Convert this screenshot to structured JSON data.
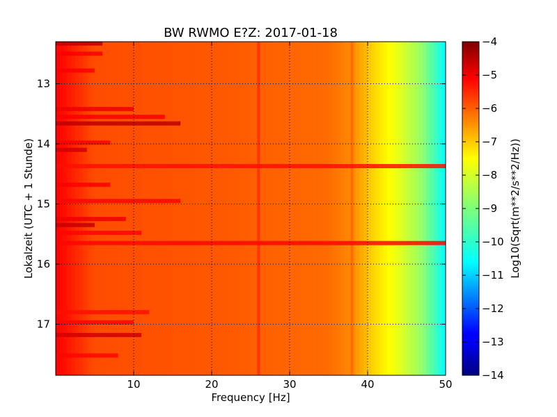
{
  "chart_data": {
    "type": "heatmap",
    "title": "BW RWMO E?Z: 2017-01-18",
    "xlabel": "Frequency [Hz]",
    "ylabel": "Lokalzeit (UTC + 1 Stunde)",
    "xlim": [
      0,
      50
    ],
    "ylim": [
      12.3,
      17.85
    ],
    "y_inverted": true,
    "xticks": [
      10,
      20,
      30,
      40,
      50
    ],
    "yticks": [
      13,
      14,
      15,
      16,
      17
    ],
    "grid": true,
    "grid_style": "dotted",
    "colormap": "jet",
    "colorbar": {
      "label": "Log10(Sqrt(m**2/s**2/Hz))",
      "range": [
        -14,
        -4
      ],
      "ticks": [
        -4,
        -5,
        -6,
        -7,
        -8,
        -9,
        -10,
        -11,
        -12,
        -13,
        -14
      ]
    },
    "features": {
      "spectral_profile": [
        {
          "freq": 0.5,
          "value": -5.3
        },
        {
          "freq": 5,
          "value": -6.0
        },
        {
          "freq": 20,
          "value": -6.1
        },
        {
          "freq": 35,
          "value": -6.3
        },
        {
          "freq": 38,
          "value": -6.6
        },
        {
          "freq": 41,
          "value": -7.4
        },
        {
          "freq": 44,
          "value": -8.0
        },
        {
          "freq": 47,
          "value": -8.8
        },
        {
          "freq": 50,
          "value": -10.3
        }
      ],
      "vertical_lines": [
        {
          "freq": 26,
          "value": -5.6
        },
        {
          "freq": 38,
          "value": -6.2
        }
      ],
      "horizontal_bands": [
        {
          "time": 12.33,
          "freq_to": 6,
          "value": -4.6
        },
        {
          "time": 12.5,
          "freq_to": 6,
          "value": -5.2
        },
        {
          "time": 12.78,
          "freq_to": 5,
          "value": -5.2
        },
        {
          "time": 13.42,
          "freq_to": 10,
          "value": -5.1
        },
        {
          "time": 13.55,
          "freq_to": 14,
          "value": -5.2
        },
        {
          "time": 13.66,
          "freq_to": 16,
          "value": -4.6
        },
        {
          "time": 13.98,
          "freq_to": 7,
          "value": -5.2
        },
        {
          "time": 14.1,
          "freq_to": 4,
          "value": -4.8
        },
        {
          "time": 14.37,
          "freq_to": 50,
          "value": -5.4
        },
        {
          "time": 14.68,
          "freq_to": 7,
          "value": -5.2
        },
        {
          "time": 14.95,
          "freq_to": 16,
          "value": -5.3
        },
        {
          "time": 15.25,
          "freq_to": 9,
          "value": -5.1
        },
        {
          "time": 15.35,
          "freq_to": 5,
          "value": -4.7
        },
        {
          "time": 15.48,
          "freq_to": 11,
          "value": -5.3
        },
        {
          "time": 15.65,
          "freq_to": 50,
          "value": -5.3
        },
        {
          "time": 16.8,
          "freq_to": 12,
          "value": -5.4
        },
        {
          "time": 16.97,
          "freq_to": 10,
          "value": -5.3
        },
        {
          "time": 17.18,
          "freq_to": 11,
          "value": -4.8
        },
        {
          "time": 17.52,
          "freq_to": 8,
          "value": -5.3
        }
      ]
    }
  }
}
